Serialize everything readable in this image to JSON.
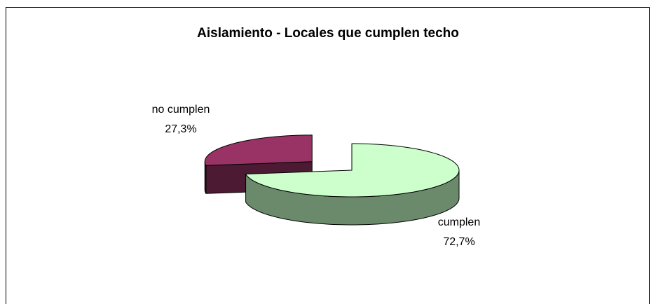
{
  "chart_data": {
    "type": "pie3d",
    "title": "Aislamiento - Locales que cumplen techo",
    "categories": [
      "cumplen",
      "no cumplen"
    ],
    "values": [
      72.7,
      27.3
    ],
    "value_labels": [
      "72,7%",
      "27,3%"
    ],
    "colors": [
      "#ccffcc",
      "#993366"
    ],
    "side_colors": [
      "#6b8a6b",
      "#4d1a33"
    ]
  }
}
